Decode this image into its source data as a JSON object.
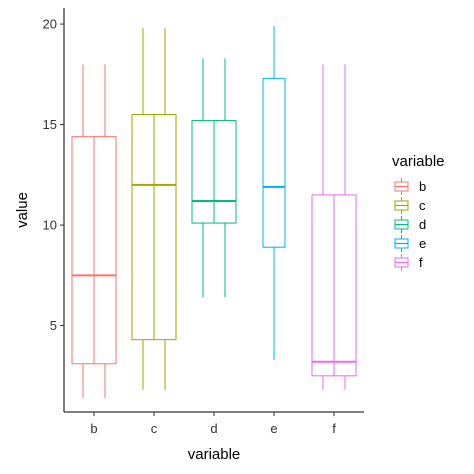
{
  "chart_data": {
    "type": "boxplot",
    "xlabel": "variable",
    "ylabel": "value",
    "ylim": [
      0.7,
      20.8
    ],
    "yticks": [
      5,
      10,
      15,
      20
    ],
    "categories": [
      "b",
      "c",
      "d",
      "e",
      "f"
    ],
    "legend": {
      "title": "variable",
      "placement": "right",
      "entries": [
        "b",
        "c",
        "d",
        "e",
        "f"
      ]
    },
    "grid": false,
    "series": [
      {
        "name": "b",
        "color": "#F8766D",
        "dodged": true,
        "min": 1.4,
        "q1": 3.1,
        "median": 7.5,
        "q3": 14.4,
        "max": 18.0
      },
      {
        "name": "c",
        "color": "#A3A500",
        "dodged": true,
        "min": 1.8,
        "q1": 4.3,
        "median": 12.0,
        "q3": 15.5,
        "max": 19.8
      },
      {
        "name": "d",
        "color": "#00BF7D",
        "dodged": true,
        "min": 6.4,
        "q1": 10.1,
        "median": 11.2,
        "q3": 15.2,
        "max": 18.3
      },
      {
        "name": "e",
        "color": "#00B0F6",
        "dodged": false,
        "min": 3.3,
        "q1": 8.9,
        "median": 11.9,
        "q3": 17.3,
        "max": 19.9
      },
      {
        "name": "f",
        "color": "#E76BF3",
        "dodged": true,
        "min": 1.8,
        "q1": 2.5,
        "median": 3.2,
        "q3": 11.5,
        "max": 18.0
      }
    ]
  }
}
